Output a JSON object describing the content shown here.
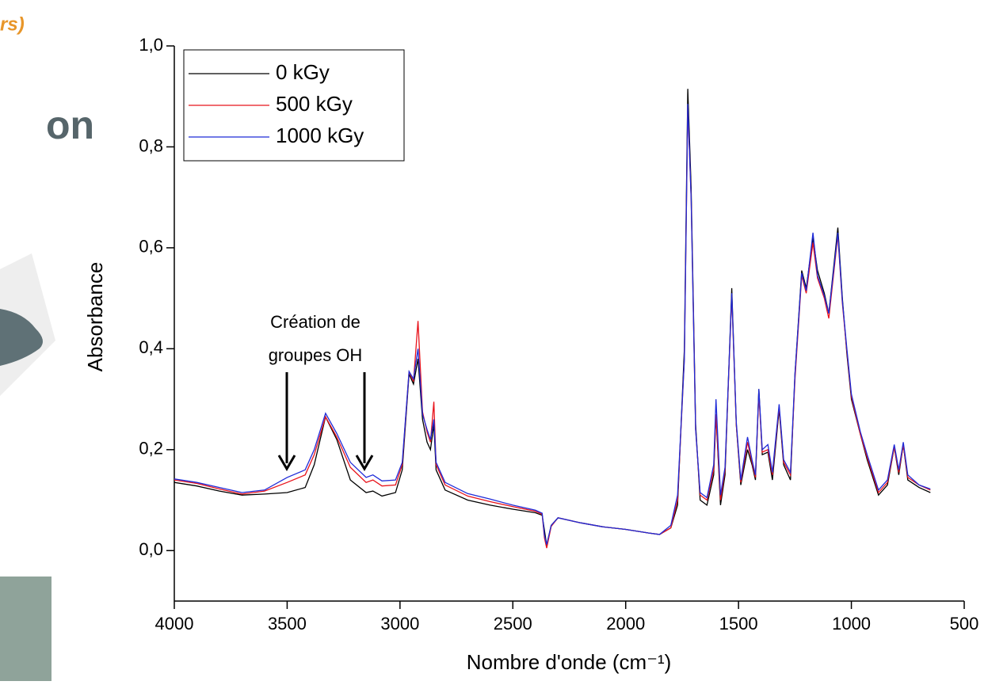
{
  "slide": {
    "fragments": [
      "rs)",
      "on"
    ]
  },
  "chart_data": {
    "type": "line",
    "y_label": "Absorbance",
    "x_label": "Nombre d'onde (cm⁻¹)",
    "annotation": [
      "Création de",
      "groupes OH"
    ],
    "xlim": [
      4000,
      500
    ],
    "ylim": [
      -0.1,
      1.0
    ],
    "xticks": [
      4000,
      3500,
      3000,
      2500,
      2000,
      1500,
      1000,
      500
    ],
    "yticks": [
      {
        "value": 0,
        "label": "0,0"
      },
      {
        "value": 0.2,
        "label": "0,2"
      },
      {
        "value": 0.4,
        "label": "0,4"
      },
      {
        "value": 0.6,
        "label": "0,6"
      },
      {
        "value": 0.8,
        "label": "0,8"
      },
      {
        "value": 1.0,
        "label": "1,0"
      }
    ],
    "legend": "upper-left",
    "x": [
      4000,
      3900,
      3800,
      3700,
      3600,
      3500,
      3420,
      3380,
      3330,
      3280,
      3220,
      3150,
      3120,
      3080,
      3020,
      2990,
      2960,
      2940,
      2920,
      2900,
      2880,
      2865,
      2850,
      2840,
      2800,
      2700,
      2600,
      2500,
      2400,
      2370,
      2360,
      2350,
      2330,
      2300,
      2200,
      2100,
      2000,
      1900,
      1850,
      1800,
      1770,
      1740,
      1725,
      1710,
      1690,
      1670,
      1640,
      1610,
      1600,
      1580,
      1560,
      1530,
      1510,
      1490,
      1460,
      1440,
      1425,
      1410,
      1395,
      1370,
      1350,
      1320,
      1300,
      1270,
      1250,
      1220,
      1200,
      1170,
      1150,
      1120,
      1100,
      1060,
      1040,
      1020,
      1000,
      960,
      930,
      880,
      840,
      810,
      790,
      770,
      750,
      700,
      650
    ],
    "series": [
      {
        "name": "0 kGy",
        "color": "#000000",
        "values": [
          0.135,
          0.128,
          0.118,
          0.11,
          0.112,
          0.115,
          0.125,
          0.17,
          0.265,
          0.22,
          0.14,
          0.115,
          0.118,
          0.108,
          0.115,
          0.16,
          0.35,
          0.33,
          0.38,
          0.26,
          0.215,
          0.2,
          0.25,
          0.16,
          0.12,
          0.1,
          0.09,
          0.082,
          0.075,
          0.07,
          0.04,
          0.01,
          0.05,
          0.065,
          0.055,
          0.047,
          0.042,
          0.035,
          0.032,
          0.045,
          0.09,
          0.4,
          0.915,
          0.72,
          0.25,
          0.1,
          0.09,
          0.15,
          0.27,
          0.09,
          0.15,
          0.52,
          0.25,
          0.13,
          0.2,
          0.17,
          0.14,
          0.32,
          0.19,
          0.195,
          0.14,
          0.28,
          0.17,
          0.14,
          0.35,
          0.555,
          0.52,
          0.62,
          0.555,
          0.51,
          0.47,
          0.64,
          0.5,
          0.39,
          0.3,
          0.23,
          0.18,
          0.11,
          0.13,
          0.205,
          0.15,
          0.21,
          0.14,
          0.125,
          0.115
        ]
      },
      {
        "name": "500 kGy",
        "color": "#e8141c",
        "values": [
          0.14,
          0.133,
          0.122,
          0.112,
          0.118,
          0.135,
          0.15,
          0.19,
          0.265,
          0.225,
          0.165,
          0.135,
          0.14,
          0.128,
          0.13,
          0.17,
          0.355,
          0.335,
          0.455,
          0.275,
          0.235,
          0.215,
          0.295,
          0.17,
          0.13,
          0.108,
          0.097,
          0.087,
          0.078,
          0.072,
          0.025,
          0.005,
          0.048,
          0.065,
          0.055,
          0.047,
          0.042,
          0.035,
          0.032,
          0.045,
          0.1,
          0.38,
          0.88,
          0.7,
          0.24,
          0.11,
          0.1,
          0.16,
          0.27,
          0.1,
          0.16,
          0.505,
          0.25,
          0.135,
          0.215,
          0.175,
          0.145,
          0.31,
          0.195,
          0.2,
          0.15,
          0.285,
          0.175,
          0.15,
          0.34,
          0.545,
          0.51,
          0.61,
          0.54,
          0.5,
          0.46,
          0.625,
          0.49,
          0.395,
          0.305,
          0.23,
          0.185,
          0.115,
          0.135,
          0.205,
          0.155,
          0.21,
          0.145,
          0.13,
          0.12
        ]
      },
      {
        "name": "1000 kGy",
        "color": "#1f2bd8",
        "values": [
          0.142,
          0.135,
          0.125,
          0.115,
          0.12,
          0.145,
          0.16,
          0.2,
          0.272,
          0.232,
          0.175,
          0.145,
          0.15,
          0.138,
          0.14,
          0.175,
          0.355,
          0.34,
          0.4,
          0.27,
          0.24,
          0.22,
          0.26,
          0.175,
          0.135,
          0.113,
          0.102,
          0.09,
          0.08,
          0.074,
          0.03,
          0.012,
          0.05,
          0.065,
          0.055,
          0.047,
          0.042,
          0.035,
          0.032,
          0.05,
          0.11,
          0.38,
          0.885,
          0.7,
          0.24,
          0.115,
          0.105,
          0.17,
          0.3,
          0.11,
          0.165,
          0.51,
          0.255,
          0.14,
          0.225,
          0.18,
          0.15,
          0.32,
          0.2,
          0.21,
          0.155,
          0.29,
          0.18,
          0.155,
          0.35,
          0.55,
          0.515,
          0.63,
          0.545,
          0.505,
          0.47,
          0.63,
          0.495,
          0.4,
          0.31,
          0.235,
          0.19,
          0.12,
          0.14,
          0.21,
          0.16,
          0.215,
          0.15,
          0.13,
          0.122
        ]
      }
    ]
  }
}
